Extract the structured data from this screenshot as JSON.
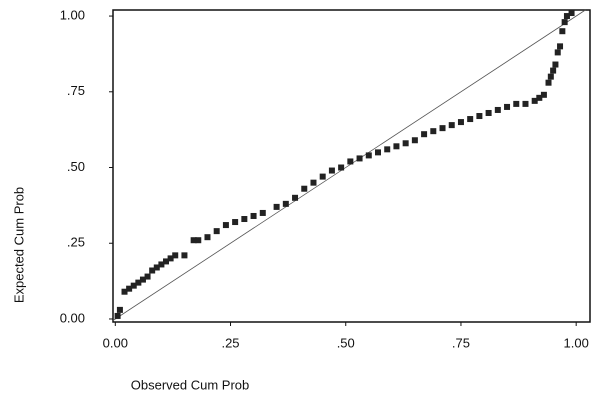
{
  "chart_data": {
    "type": "scatter",
    "xlabel": "Observed Cum Prob",
    "ylabel": "Expected Cum Prob",
    "x": [
      0.005,
      0.01,
      0.02,
      0.03,
      0.04,
      0.05,
      0.06,
      0.07,
      0.08,
      0.09,
      0.1,
      0.11,
      0.12,
      0.13,
      0.15,
      0.17,
      0.18,
      0.2,
      0.22,
      0.24,
      0.26,
      0.28,
      0.3,
      0.32,
      0.35,
      0.37,
      0.39,
      0.41,
      0.43,
      0.45,
      0.47,
      0.49,
      0.51,
      0.53,
      0.55,
      0.57,
      0.59,
      0.61,
      0.63,
      0.65,
      0.67,
      0.69,
      0.71,
      0.73,
      0.75,
      0.77,
      0.79,
      0.81,
      0.83,
      0.85,
      0.87,
      0.89,
      0.91,
      0.92,
      0.93,
      0.94,
      0.945,
      0.95,
      0.955,
      0.96,
      0.965,
      0.97,
      0.975,
      0.98,
      0.99
    ],
    "values": [
      0.01,
      0.03,
      0.09,
      0.1,
      0.11,
      0.12,
      0.13,
      0.14,
      0.16,
      0.17,
      0.18,
      0.19,
      0.2,
      0.21,
      0.21,
      0.26,
      0.26,
      0.27,
      0.29,
      0.31,
      0.32,
      0.33,
      0.34,
      0.35,
      0.37,
      0.38,
      0.4,
      0.43,
      0.45,
      0.47,
      0.49,
      0.5,
      0.52,
      0.53,
      0.54,
      0.55,
      0.56,
      0.57,
      0.58,
      0.59,
      0.61,
      0.62,
      0.63,
      0.64,
      0.65,
      0.66,
      0.67,
      0.68,
      0.69,
      0.7,
      0.71,
      0.71,
      0.72,
      0.73,
      0.74,
      0.78,
      0.8,
      0.82,
      0.84,
      0.88,
      0.9,
      0.95,
      0.98,
      1.0,
      1.01
    ],
    "color": "#222222",
    "xlim": [
      -0.005,
      1.03
    ],
    "ylim": [
      -0.01,
      1.02
    ],
    "xticks": [
      {
        "value": 0,
        "label": "0.00"
      },
      {
        "value": 0.25,
        "label": ".25"
      },
      {
        "value": 0.5,
        "label": ".50"
      },
      {
        "value": 0.75,
        "label": ".75"
      },
      {
        "value": 1,
        "label": "1.00"
      }
    ],
    "yticks": [
      {
        "value": 0,
        "label": "0.00"
      },
      {
        "value": 0.25,
        "label": ".25"
      },
      {
        "value": 0.5,
        "label": ".50"
      },
      {
        "value": 0.75,
        "label": ".75"
      },
      {
        "value": 1,
        "label": "1.00"
      }
    ]
  }
}
